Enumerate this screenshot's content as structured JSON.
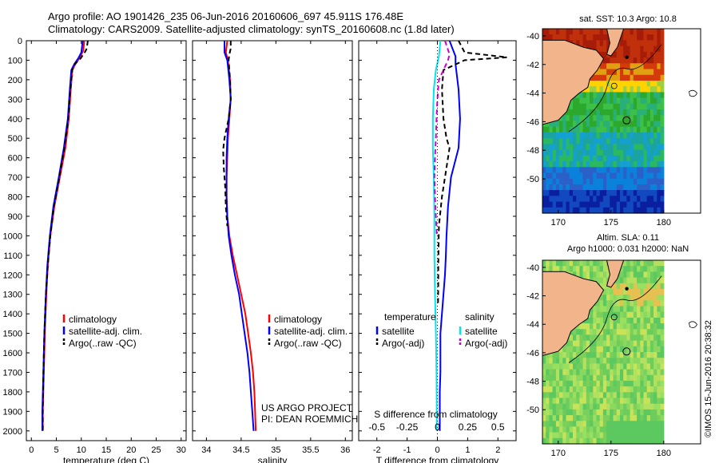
{
  "header": {
    "line1": "Argo profile: AO 1901426_235 06-Jun-2016 20160606_697 45.911S 176.48E",
    "line2": "Climatology: CARS2009. Satellite-adjusted climatology: synTS_20160608.nc (1.8d later)"
  },
  "colors": {
    "climatology": "#ff0000",
    "satellite": "#0000ff",
    "argo": "#000000",
    "satellite_salinity": "#00e5ee",
    "argo_salinity": "#cc00cc",
    "coast": "#f2b48a"
  },
  "chart_data": [
    {
      "type": "line",
      "name": "temperature-panel",
      "xlabel": "temperature (deg C)",
      "xlim": [
        -1,
        31
      ],
      "xticks": [
        0,
        5,
        10,
        15,
        20,
        25,
        30
      ],
      "ylim": [
        0,
        2050
      ],
      "yticks": [
        0,
        100,
        200,
        300,
        400,
        500,
        600,
        700,
        800,
        900,
        1000,
        1100,
        1200,
        1300,
        1400,
        1500,
        1600,
        1700,
        1800,
        1900,
        2000
      ],
      "legend": [
        "climatology",
        "satellite-adj. clim.",
        "Argo(..raw -QC)"
      ],
      "legend_position": "lower-left",
      "series": [
        {
          "name": "climatology",
          "style": "solid",
          "color": "#ff0000",
          "points": [
            [
              10.6,
              0
            ],
            [
              10.4,
              50
            ],
            [
              9.6,
              90
            ],
            [
              8.8,
              120
            ],
            [
              8.2,
              150
            ],
            [
              7.9,
              250
            ],
            [
              7.5,
              400
            ],
            [
              6.8,
              550
            ],
            [
              5.7,
              700
            ],
            [
              4.6,
              850
            ],
            [
              3.8,
              1000
            ],
            [
              3.3,
              1150
            ],
            [
              3.0,
              1300
            ],
            [
              2.7,
              1500
            ],
            [
              2.5,
              1700
            ],
            [
              2.3,
              1900
            ],
            [
              2.3,
              2000
            ]
          ]
        },
        {
          "name": "satellite-adj. clim.",
          "style": "solid",
          "color": "#0000ff",
          "points": [
            [
              10.3,
              0
            ],
            [
              10.0,
              60
            ],
            [
              9.4,
              90
            ],
            [
              8.6,
              120
            ],
            [
              8.0,
              150
            ],
            [
              7.7,
              250
            ],
            [
              7.3,
              400
            ],
            [
              6.5,
              550
            ],
            [
              5.5,
              700
            ],
            [
              4.4,
              850
            ],
            [
              3.7,
              1000
            ],
            [
              3.2,
              1150
            ],
            [
              2.9,
              1300
            ],
            [
              2.6,
              1500
            ],
            [
              2.4,
              1700
            ],
            [
              2.2,
              1900
            ],
            [
              2.2,
              2000
            ]
          ]
        },
        {
          "name": "Argo(..raw -QC)",
          "style": "dashed",
          "color": "#000000",
          "points": [
            [
              11.3,
              0
            ],
            [
              11.1,
              40
            ],
            [
              10.8,
              55
            ],
            [
              9.9,
              90
            ],
            [
              8.7,
              120
            ],
            [
              8.2,
              150
            ],
            [
              7.8,
              250
            ],
            [
              7.4,
              400
            ],
            [
              6.6,
              550
            ],
            [
              5.6,
              700
            ],
            [
              4.5,
              850
            ],
            [
              3.8,
              1000
            ],
            [
              3.3,
              1150
            ],
            [
              2.9,
              1300
            ],
            [
              2.6,
              1500
            ],
            [
              2.4,
              1700
            ],
            [
              2.3,
              1900
            ],
            [
              2.3,
              2000
            ]
          ]
        }
      ]
    },
    {
      "type": "line",
      "name": "salinity-panel",
      "xlabel": "salinity",
      "xlim": [
        33.8,
        36.1
      ],
      "xticks": [
        34,
        34.5,
        35,
        35.5,
        36
      ],
      "xticklabels": [
        "34",
        "34.5",
        "35",
        "35.5",
        "36"
      ],
      "ylim": [
        0,
        2050
      ],
      "legend": [
        "climatology",
        "satellite-adj. clim.",
        "Argo(..raw -QC)"
      ],
      "legend_position": "lower-right",
      "annotation": [
        "US ARGO PROJECT",
        "PI: DEAN ROEMMICH"
      ],
      "series": [
        {
          "name": "climatology",
          "style": "solid",
          "color": "#ff0000",
          "points": [
            [
              34.3,
              0
            ],
            [
              34.28,
              60
            ],
            [
              34.31,
              100
            ],
            [
              34.34,
              200
            ],
            [
              34.35,
              300
            ],
            [
              34.33,
              400
            ],
            [
              34.31,
              500
            ],
            [
              34.3,
              600
            ],
            [
              34.29,
              700
            ],
            [
              34.29,
              800
            ],
            [
              34.3,
              900
            ],
            [
              34.33,
              1000
            ],
            [
              34.38,
              1100
            ],
            [
              34.44,
              1200
            ],
            [
              34.5,
              1300
            ],
            [
              34.56,
              1400
            ],
            [
              34.6,
              1500
            ],
            [
              34.64,
              1600
            ],
            [
              34.67,
              1700
            ],
            [
              34.69,
              1800
            ],
            [
              34.7,
              1900
            ],
            [
              34.71,
              2000
            ]
          ]
        },
        {
          "name": "satellite-adj. clim.",
          "style": "solid",
          "color": "#0000ff",
          "points": [
            [
              34.26,
              0
            ],
            [
              34.26,
              60
            ],
            [
              34.3,
              100
            ],
            [
              34.33,
              200
            ],
            [
              34.35,
              300
            ],
            [
              34.32,
              400
            ],
            [
              34.3,
              500
            ],
            [
              34.29,
              600
            ],
            [
              34.29,
              700
            ],
            [
              34.29,
              800
            ],
            [
              34.3,
              900
            ],
            [
              34.32,
              1000
            ],
            [
              34.36,
              1100
            ],
            [
              34.41,
              1200
            ],
            [
              34.47,
              1300
            ],
            [
              34.51,
              1400
            ],
            [
              34.55,
              1500
            ],
            [
              34.59,
              1600
            ],
            [
              34.62,
              1700
            ],
            [
              34.64,
              1800
            ],
            [
              34.66,
              1900
            ],
            [
              34.68,
              2000
            ]
          ]
        },
        {
          "name": "Argo(..raw -QC)",
          "style": "dashed",
          "color": "#000000",
          "points": [
            [
              34.35,
              0
            ],
            [
              34.35,
              40
            ],
            [
              34.33,
              70
            ],
            [
              34.32,
              100
            ],
            [
              34.34,
              200
            ],
            [
              34.35,
              300
            ],
            [
              34.32,
              400
            ],
            [
              34.26,
              500
            ],
            [
              34.24,
              560
            ],
            [
              34.25,
              650
            ],
            [
              34.27,
              750
            ],
            [
              34.28,
              850
            ],
            [
              34.3,
              950
            ]
          ]
        }
      ]
    },
    {
      "type": "line",
      "name": "difference-panel",
      "xlabel": "T difference from climatology",
      "xlabel_top": "S difference from climatology",
      "xlim": [
        -2.6,
        2.6
      ],
      "xticks": [
        -2,
        -1,
        0,
        1,
        2
      ],
      "sticks": [
        -0.5,
        -0.25,
        0,
        0.25,
        0.5
      ],
      "ylim": [
        0,
        2050
      ],
      "legend_groups": [
        {
          "heading": "temperature",
          "items": [
            "satellite",
            "Argo(-adj)"
          ]
        },
        {
          "heading": "salinity",
          "items": [
            "satellite",
            "Argo(-adj)"
          ]
        }
      ],
      "series": [
        {
          "name": "temperature satellite",
          "style": "solid",
          "color": "#0000ff",
          "points": [
            [
              0.4,
              0
            ],
            [
              0.5,
              40
            ],
            [
              0.6,
              80
            ],
            [
              0.6,
              120
            ],
            [
              0.7,
              250
            ],
            [
              0.75,
              400
            ],
            [
              0.7,
              550
            ],
            [
              0.45,
              700
            ],
            [
              0.35,
              850
            ],
            [
              0.3,
              1000
            ],
            [
              0.28,
              1100
            ],
            [
              0.25,
              1200
            ],
            [
              0.2,
              1300
            ],
            [
              0.15,
              1400
            ],
            [
              0.1,
              1500
            ],
            [
              0.1,
              1600
            ],
            [
              0.1,
              1700
            ],
            [
              0.08,
              1800
            ],
            [
              0.08,
              1900
            ],
            [
              0.08,
              2000
            ]
          ]
        },
        {
          "name": "temperature Argo(-adj)",
          "style": "dashed",
          "color": "#000000",
          "points": [
            [
              0.7,
              0
            ],
            [
              0.9,
              60
            ],
            [
              2.3,
              85
            ],
            [
              0.9,
              100
            ],
            [
              0.2,
              150
            ],
            [
              0.15,
              250
            ],
            [
              0.2,
              400
            ],
            [
              0.3,
              500
            ],
            [
              0.4,
              550
            ],
            [
              0.3,
              650
            ],
            [
              0.15,
              800
            ],
            [
              0.05,
              950
            ],
            [
              0.04,
              1050
            ],
            [
              0.03,
              1150
            ],
            [
              0.03,
              1250
            ],
            [
              0.02,
              1350
            ]
          ]
        },
        {
          "name": "salinity satellite",
          "style": "solid",
          "color": "#00e5ee",
          "points": [
            [
              0.1,
              0
            ],
            [
              0.05,
              80
            ],
            [
              -0.05,
              150
            ],
            [
              -0.12,
              250
            ],
            [
              -0.15,
              400
            ],
            [
              -0.15,
              550
            ],
            [
              -0.12,
              700
            ],
            [
              -0.1,
              900
            ],
            [
              -0.1,
              1100
            ],
            [
              -0.08,
              1300
            ],
            [
              -0.05,
              1500
            ],
            [
              -0.03,
              1700
            ],
            [
              -0.02,
              1900
            ],
            [
              -0.02,
              2000
            ]
          ]
        },
        {
          "name": "salinity Argo(-adj)",
          "style": "dashed",
          "color": "#cc00cc",
          "points": [
            [
              0.25,
              0
            ],
            [
              0.4,
              70
            ],
            [
              0.35,
              100
            ],
            [
              0.05,
              200
            ],
            [
              0.0,
              300
            ],
            [
              -0.03,
              400
            ],
            [
              -0.05,
              500
            ],
            [
              -0.08,
              600
            ],
            [
              -0.1,
              700
            ],
            [
              -0.08,
              800
            ],
            [
              -0.05,
              900
            ],
            [
              -0.02,
              1000
            ]
          ]
        }
      ]
    },
    {
      "type": "heatmap",
      "name": "sst-map",
      "title": "sat. SST: 10.3 Argo: 10.8",
      "xticks": [
        170,
        175,
        180
      ],
      "yticks": [
        -40,
        -42,
        -44,
        -46,
        -48,
        -50
      ],
      "marker": {
        "lon": 176.48,
        "lat": -45.911
      }
    },
    {
      "type": "heatmap",
      "name": "sla-map",
      "title_lines": [
        "Altim. SLA: 0.11",
        "Argo h1000: 0.031 h2000: NaN"
      ],
      "xticks": [
        170,
        175,
        180
      ],
      "yticks": [
        -40,
        -42,
        -44,
        -46,
        -48,
        -50
      ],
      "marker": {
        "lon": 176.48,
        "lat": -45.911
      }
    }
  ],
  "side_text": "©IMOS 15-Jun-2016 20:38:32"
}
